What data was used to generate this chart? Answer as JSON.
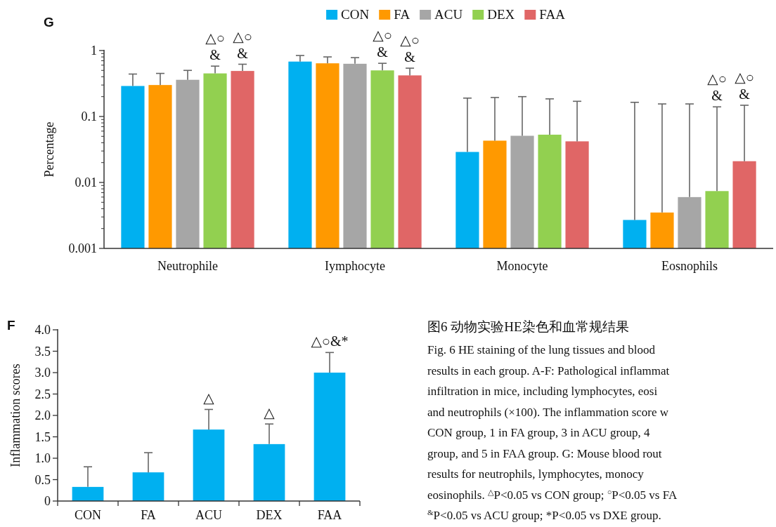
{
  "chart_data": [
    {
      "type": "bar",
      "ylabel": "Percentage",
      "categories": [
        "Neutrophile",
        "Iymphocyte",
        "Monocyte",
        "Eosnophils"
      ],
      "log": true,
      "ylim": [
        0.001,
        1
      ],
      "yticks": [
        1,
        0.1,
        0.01,
        0.001
      ],
      "legend": "top",
      "series": [
        {
          "name": "CON",
          "color": "#00b0f0",
          "values": [
            0.29,
            0.68,
            0.029,
            0.0027
          ],
          "errors": [
            [
              0.29,
              0.44
            ],
            [
              0.68,
              0.84
            ],
            [
              0.029,
              0.19
            ],
            [
              0.0027,
              0.164
            ]
          ]
        },
        {
          "name": "FA",
          "color": "#ff9900",
          "values": [
            0.3,
            0.64,
            0.043,
            0.0035
          ],
          "errors": [
            [
              0.3,
              0.45
            ],
            [
              0.64,
              0.8
            ],
            [
              0.043,
              0.194
            ],
            [
              0.0035,
              0.155
            ]
          ]
        },
        {
          "name": "ACU",
          "color": "#a6a6a6",
          "values": [
            0.36,
            0.63,
            0.051,
            0.006
          ],
          "errors": [
            [
              0.36,
              0.5
            ],
            [
              0.63,
              0.78
            ],
            [
              0.051,
              0.2
            ],
            [
              0.006,
              0.155
            ]
          ]
        },
        {
          "name": "DEX",
          "color": "#92d050",
          "values": [
            0.45,
            0.5,
            0.053,
            0.0074
          ],
          "errors": [
            [
              0.45,
              0.58
            ],
            [
              0.5,
              0.64
            ],
            [
              0.053,
              0.185
            ],
            [
              0.0074,
              0.14
            ]
          ]
        },
        {
          "name": "FAA",
          "color": "#e06666",
          "values": [
            0.49,
            0.42,
            0.042,
            0.021
          ],
          "errors": [
            [
              0.49,
              0.62
            ],
            [
              0.42,
              0.54
            ],
            [
              0.042,
              0.17
            ],
            [
              0.021,
              0.148
            ]
          ]
        }
      ],
      "annotations": [
        "G",
        "△○\n&",
        "△○\n&",
        "△○\n&",
        "△○\n&",
        "△○\n&",
        "△○\n&"
      ]
    },
    {
      "type": "bar",
      "ylabel": "Inflammation scores",
      "categories": [
        "CON",
        "FA",
        "ACU",
        "DEX",
        "FAA"
      ],
      "color": "#00b0f0",
      "values": [
        0.33,
        0.67,
        1.67,
        1.33,
        3.0
      ],
      "errors": [
        [
          0.33,
          0.8
        ],
        [
          0.67,
          1.13
        ],
        [
          1.67,
          2.14
        ],
        [
          1.33,
          1.8
        ],
        [
          3.0,
          3.47
        ]
      ],
      "ylim": [
        0,
        4
      ],
      "yticks": [
        0,
        0.5,
        {
          "value": 1,
          "label": "1.0"
        },
        1.5,
        {
          "value": 2,
          "label": "2.0"
        },
        2.5,
        {
          "value": 3,
          "label": "3.0"
        },
        3.5,
        {
          "value": 4,
          "label": "4.0"
        }
      ],
      "annotations": [
        "F",
        {
          "text": "△",
          "x": "ACU",
          "y": 2.14
        },
        {
          "text": "△",
          "x": "DEX",
          "y": 1.8
        },
        {
          "text": "△○&*",
          "x": "FAA",
          "y": 3.47
        }
      ]
    },
    {
      "type": "other",
      "title": "图6 动物实验HE染色和血常规结果",
      "annotations": [
        "Fig. 6  HE staining of the lung tissues and blood",
        "results in each group. A-F: Pathological inflammat",
        "infiltration in mice, including lymphocytes, eosi",
        "and neutrophils (×100). The inflammation score w",
        "CON group, 1 in FA group, 3 in ACU group, 4",
        "group, and 5 in FAA group. G: Mouse blood rout",
        "results for neutrophils, lymphocytes, monocy",
        "eosinophils. $^{△}$P<0.05 vs CON group; $^{○}$P<0.05 vs FA",
        "$^{&}$P<0.05 vs ACU group; *P<0.05 vs DXE group."
      ]
    }
  ]
}
